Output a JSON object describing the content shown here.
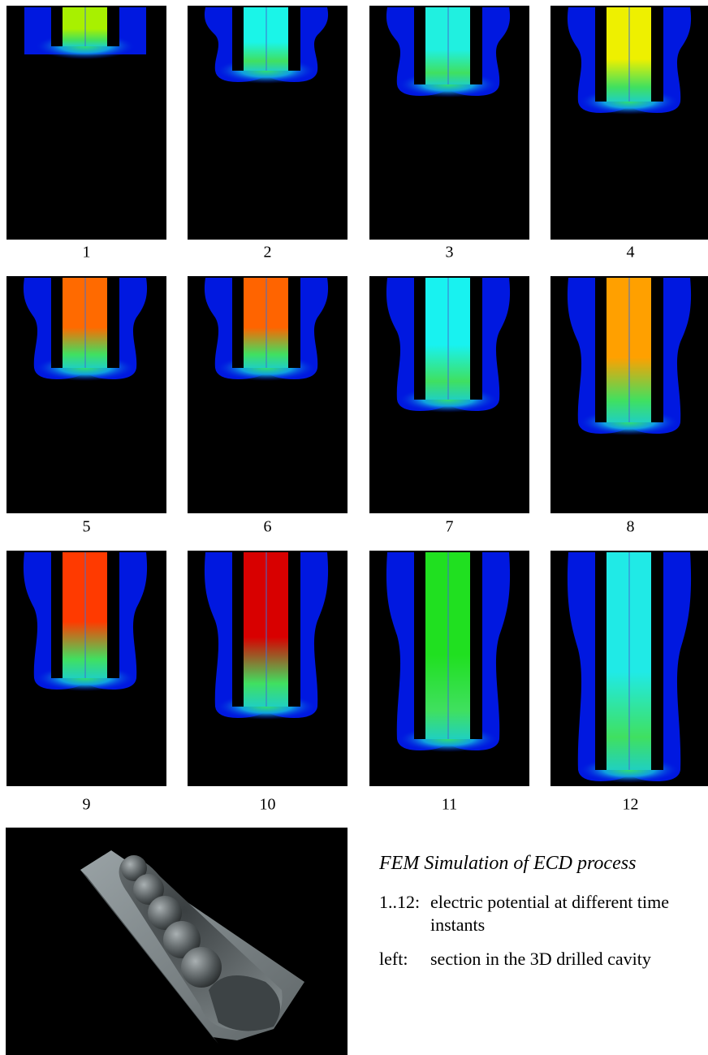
{
  "panels": [
    {
      "label": "1"
    },
    {
      "label": "2"
    },
    {
      "label": "3"
    },
    {
      "label": "4"
    },
    {
      "label": "5"
    },
    {
      "label": "6"
    },
    {
      "label": "7"
    },
    {
      "label": "8"
    },
    {
      "label": "9"
    },
    {
      "label": "10"
    },
    {
      "label": "11"
    },
    {
      "label": "12"
    }
  ],
  "caption": {
    "title": "FEM Simulation of ECD process",
    "items": [
      {
        "term": "1..12:",
        "text": "electric potential at different time instants"
      },
      {
        "term": "left:",
        "text": "section in the 3D drilled cavity"
      }
    ]
  }
}
